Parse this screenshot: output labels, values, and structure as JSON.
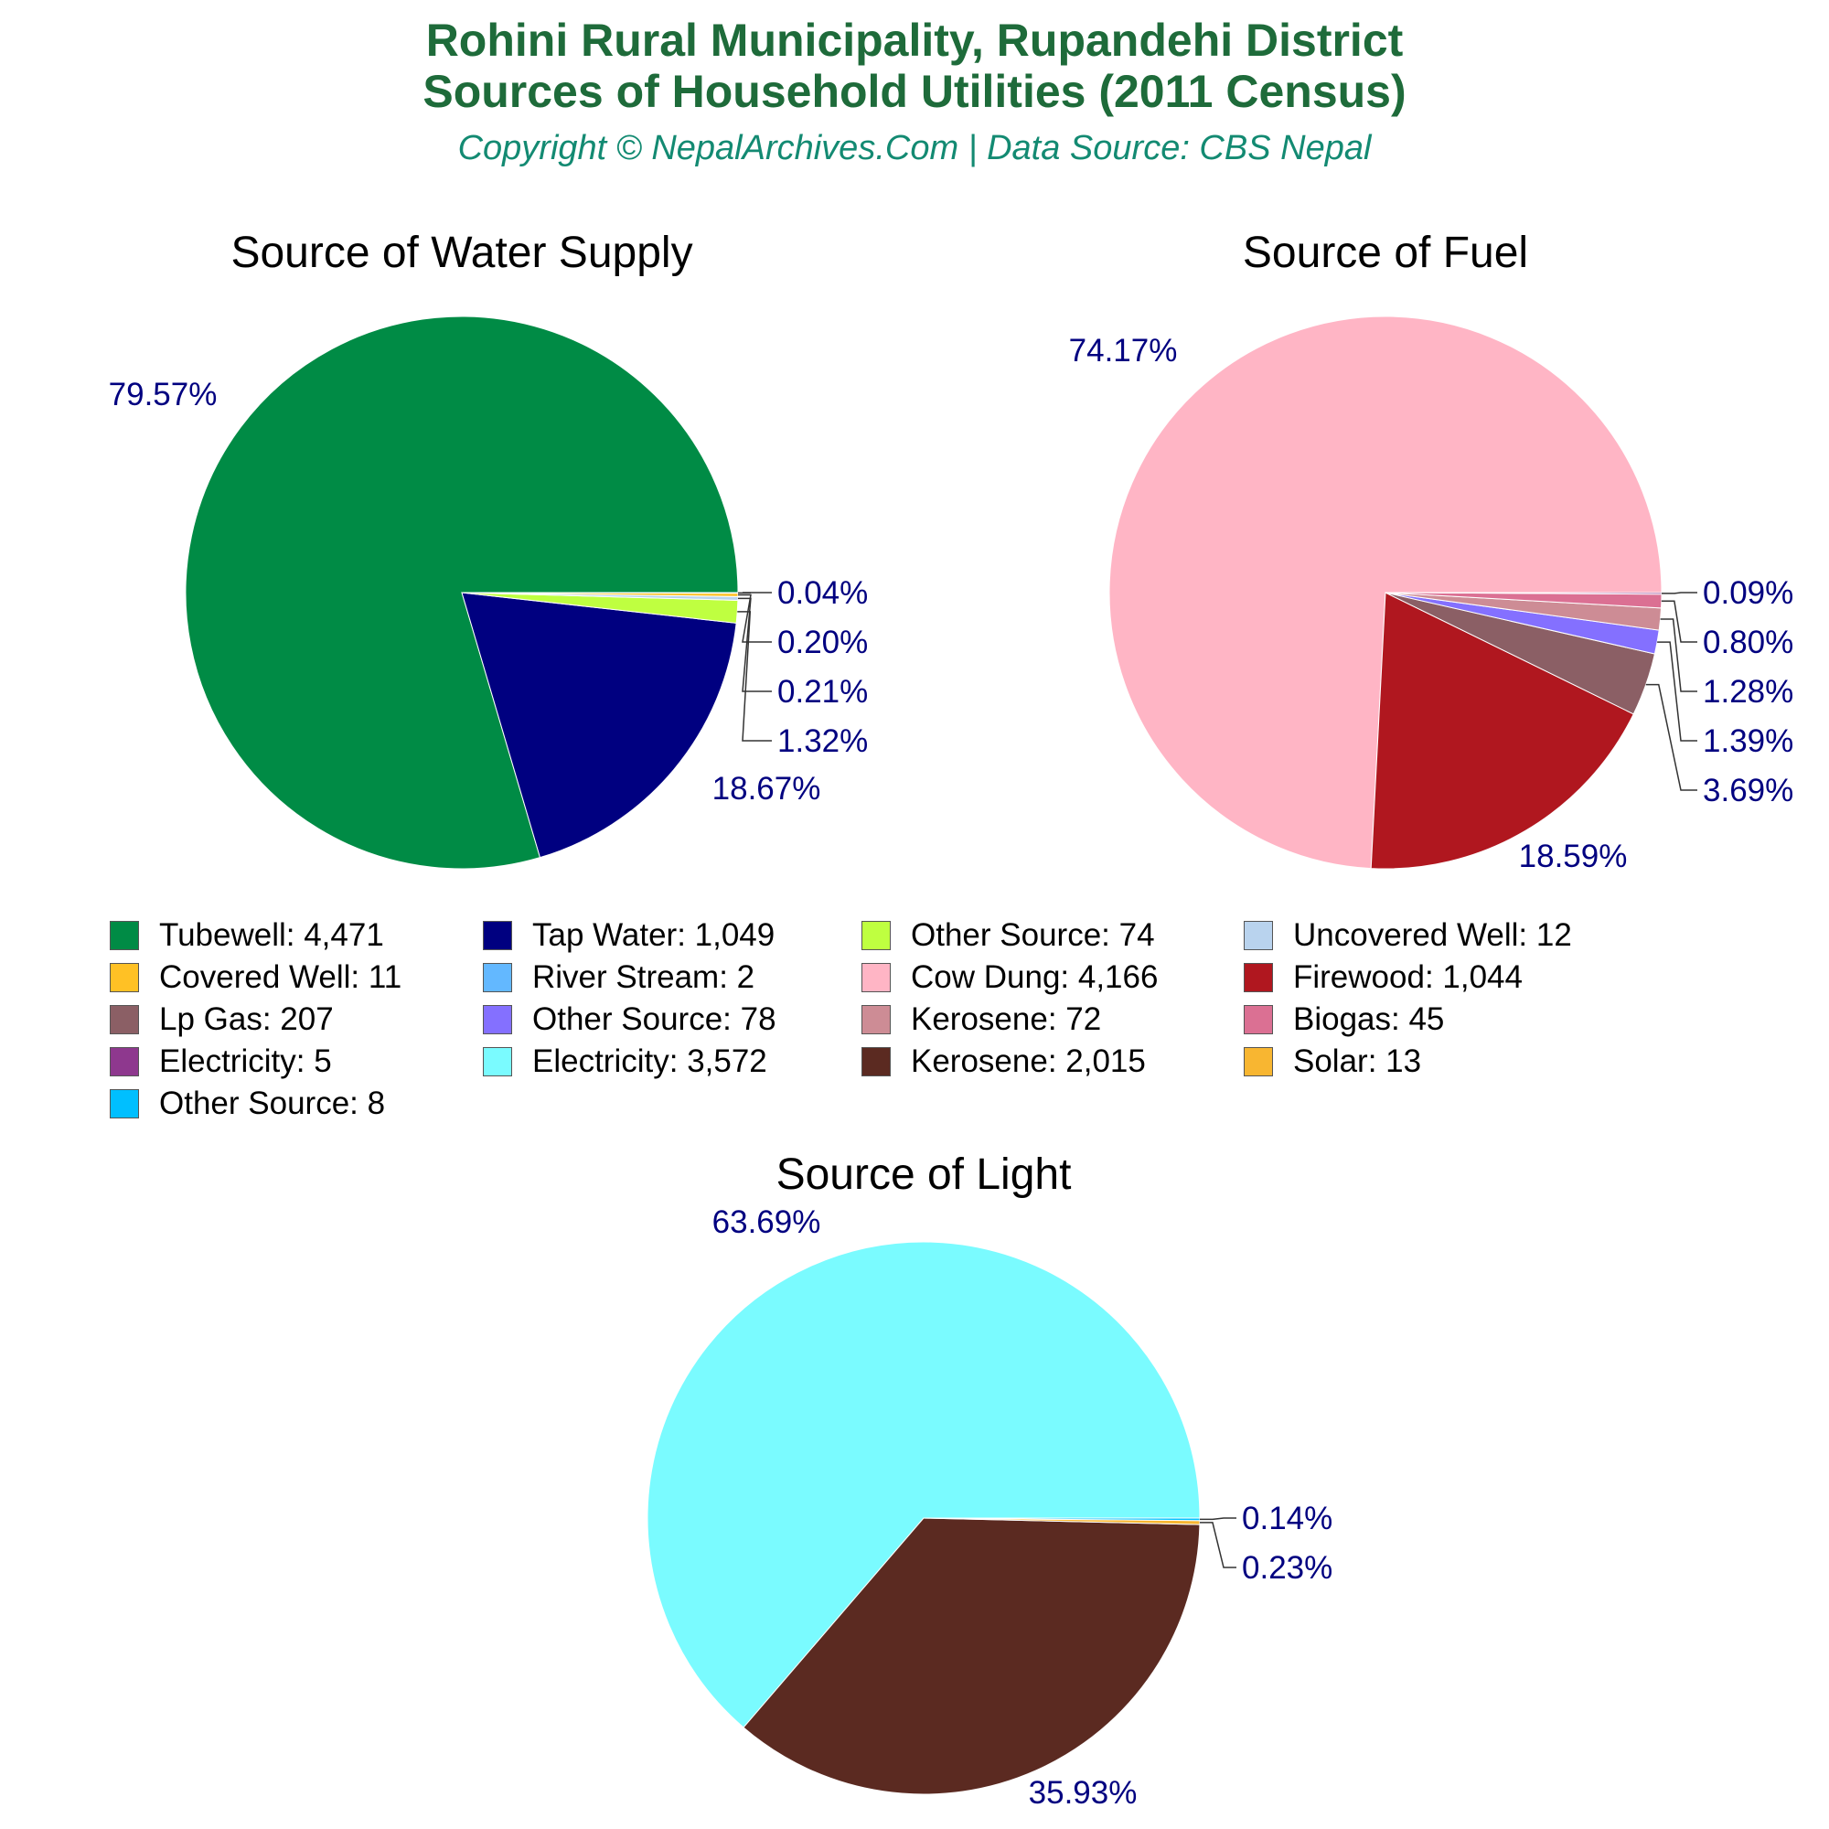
{
  "header": {
    "title_line1": "Rohini Rural Municipality, Rupandehi District",
    "title_line2": "Sources of Household Utilities (2011 Census)",
    "subtitle": "Copyright © NepalArchives.Com | Data Source: CBS Nepal"
  },
  "chart_data": [
    {
      "type": "pie",
      "title": "Source of Water Supply",
      "slices": [
        {
          "label": "Tubewell",
          "value": 4471,
          "percent": "79.57%",
          "color": "#008b45"
        },
        {
          "label": "Tap Water",
          "value": 1049,
          "percent": "18.67%",
          "color": "#000080"
        },
        {
          "label": "Other Source",
          "value": 74,
          "percent": "1.32%",
          "color": "#bfff40"
        },
        {
          "label": "Uncovered Well",
          "value": 12,
          "percent": "0.21%",
          "color": "#b9d3ee"
        },
        {
          "label": "Covered Well",
          "value": 11,
          "percent": "0.20%",
          "color": "#ffc125"
        },
        {
          "label": "River Stream",
          "value": 2,
          "percent": "0.04%",
          "color": "#63b8ff"
        }
      ]
    },
    {
      "type": "pie",
      "title": "Source of Fuel",
      "slices": [
        {
          "label": "Cow Dung",
          "value": 4166,
          "percent": "74.17%",
          "color": "#ffb5c5"
        },
        {
          "label": "Firewood",
          "value": 1044,
          "percent": "18.59%",
          "color": "#b0171f"
        },
        {
          "label": "Lp Gas",
          "value": 207,
          "percent": "3.69%",
          "color": "#8b5f65"
        },
        {
          "label": "Other Source",
          "value": 78,
          "percent": "1.39%",
          "color": "#8470ff"
        },
        {
          "label": "Kerosene",
          "value": 72,
          "percent": "1.28%",
          "color": "#cd8c95"
        },
        {
          "label": "Biogas",
          "value": 45,
          "percent": "0.80%",
          "color": "#db7093"
        },
        {
          "label": "Electricity",
          "value": 5,
          "percent": "0.09%",
          "color": "#8e388e"
        }
      ]
    },
    {
      "type": "pie",
      "title": "Source of Light",
      "slices": [
        {
          "label": "Electricity",
          "value": 3572,
          "percent": "63.69%",
          "color": "#7afbff"
        },
        {
          "label": "Kerosene",
          "value": 2015,
          "percent": "35.93%",
          "color": "#5b2a21"
        },
        {
          "label": "Solar",
          "value": 13,
          "percent": "0.23%",
          "color": "#f8b631"
        },
        {
          "label": "Other Source",
          "value": 8,
          "percent": "0.14%",
          "color": "#00bfff"
        }
      ]
    }
  ],
  "legend": {
    "items": [
      {
        "text": "Tubewell: 4,471",
        "color": "#008b45"
      },
      {
        "text": "Tap Water: 1,049",
        "color": "#000080"
      },
      {
        "text": "Other Source: 74",
        "color": "#bfff40"
      },
      {
        "text": "Uncovered Well: 12",
        "color": "#b9d3ee"
      },
      {
        "text": "Covered Well: 11",
        "color": "#ffc125"
      },
      {
        "text": "River Stream: 2",
        "color": "#63b8ff"
      },
      {
        "text": "Cow Dung: 4,166",
        "color": "#ffb5c5"
      },
      {
        "text": "Firewood: 1,044",
        "color": "#b0171f"
      },
      {
        "text": "Lp Gas: 207",
        "color": "#8b5f65"
      },
      {
        "text": "Other Source: 78",
        "color": "#8470ff"
      },
      {
        "text": "Kerosene: 72",
        "color": "#cd8c95"
      },
      {
        "text": "Biogas: 45",
        "color": "#db7093"
      },
      {
        "text": "Electricity: 5",
        "color": "#8e388e"
      },
      {
        "text": "Electricity: 3,572",
        "color": "#7afbff"
      },
      {
        "text": "Kerosene: 2,015",
        "color": "#5b2a21"
      },
      {
        "text": "Solar: 13",
        "color": "#f8b631"
      },
      {
        "text": "Other Source: 8",
        "color": "#00bfff"
      }
    ]
  }
}
